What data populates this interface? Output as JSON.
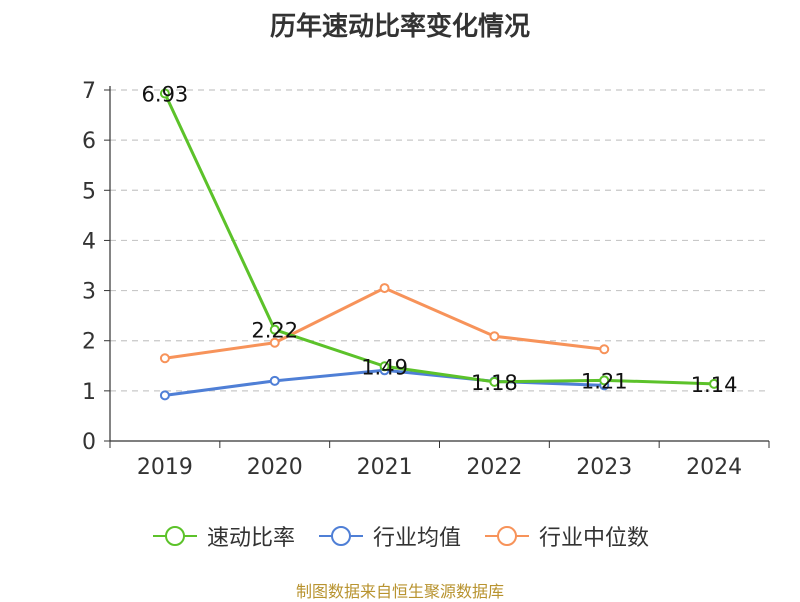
{
  "chart_data": {
    "type": "line",
    "title": "历年速动比率变化情况",
    "categories": [
      "2019",
      "2020",
      "2021",
      "2022",
      "2023",
      "2024"
    ],
    "ylim": [
      0,
      7
    ],
    "yticks": [
      "0",
      "1",
      "2",
      "3",
      "4",
      "5",
      "6",
      "7"
    ],
    "grid": true,
    "legend_position": "bottom",
    "series": [
      {
        "name": "速动比率",
        "color": "#5cc22a",
        "values": [
          6.93,
          2.22,
          1.49,
          1.18,
          1.21,
          1.14
        ],
        "labels": [
          "6.93",
          "2.22",
          "1.49",
          "1.18",
          "1.21",
          "1.14"
        ]
      },
      {
        "name": "行业均值",
        "color": "#4f7fd6",
        "values": [
          0.91,
          1.2,
          1.41,
          1.19,
          1.11,
          null
        ]
      },
      {
        "name": "行业中位数",
        "color": "#f7935a",
        "values": [
          1.65,
          1.96,
          3.05,
          2.09,
          1.83,
          null
        ]
      }
    ]
  },
  "footer": {
    "source": "制图数据来自恒生聚源数据库"
  }
}
